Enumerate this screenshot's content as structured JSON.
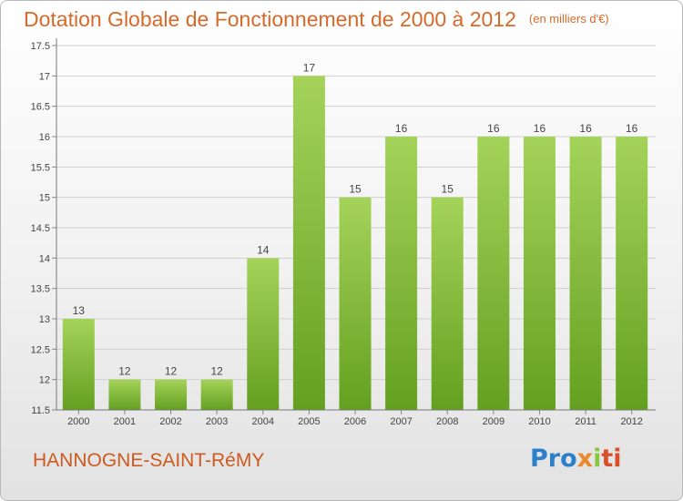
{
  "header": {
    "title": "Dotation Globale de Fonctionnement de 2000 à 2012",
    "unit": "(en milliers d'€)"
  },
  "footer": {
    "commune": "HANNOGNE-SAINT-RéMY",
    "logo_parts": [
      "Pro",
      "x",
      "i",
      "ti"
    ]
  },
  "colors": {
    "bar_top": "#a5d35a",
    "bar_bottom": "#64a020",
    "title": "#d66a2a",
    "grid": "#d0d0d0"
  },
  "chart_data": {
    "type": "bar",
    "categories": [
      "2000",
      "2001",
      "2002",
      "2003",
      "2004",
      "2005",
      "2006",
      "2007",
      "2008",
      "2009",
      "2010",
      "2011",
      "2012"
    ],
    "values": [
      13,
      12,
      12,
      12,
      14,
      17,
      15,
      16,
      15,
      16,
      16,
      16,
      16
    ],
    "value_labels": [
      "13",
      "12",
      "12",
      "12",
      "14",
      "17",
      "15",
      "16",
      "15",
      "16",
      "16",
      "16",
      "16"
    ],
    "yticks": [
      "11.5",
      "12",
      "12.5",
      "13",
      "13.5",
      "14",
      "14.5",
      "15",
      "15.5",
      "16",
      "16.5",
      "17",
      "17.5"
    ],
    "ylim": [
      11.5,
      17.5
    ],
    "grid": true
  }
}
